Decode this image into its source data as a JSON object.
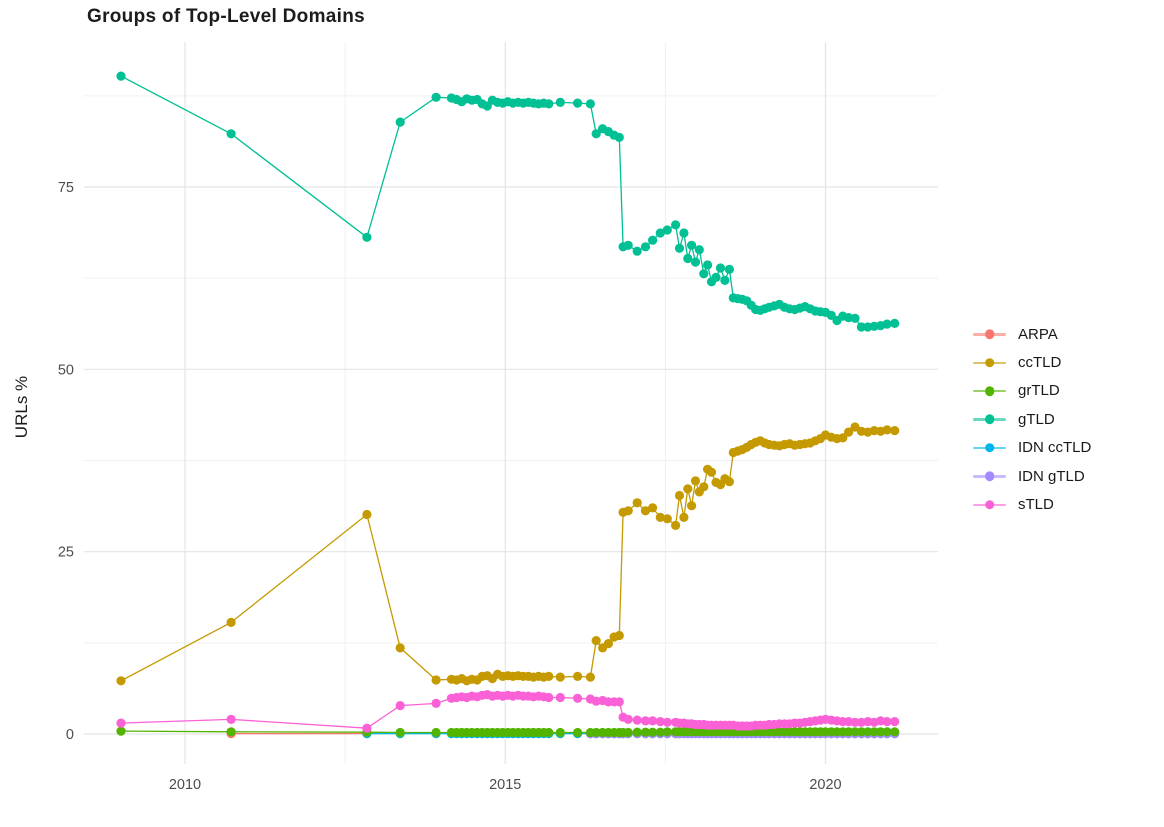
{
  "title": "Groups of Top-Level Domains",
  "y_axis": {
    "label": "URLs %",
    "ticks": [
      0,
      25,
      50,
      75
    ],
    "minor_ticks": [
      12.5,
      37.5,
      62.5,
      87.5
    ]
  },
  "x_axis": {
    "ticks": [
      2010,
      2015,
      2020
    ],
    "minor_ticks": [
      2012.5,
      2017.5
    ]
  },
  "colors": {
    "grid_major": "#e4e4e4",
    "grid_minor": "#f0f0f0",
    "axis_text": "#4d4d4d",
    "title_text": "#1c1c1c"
  },
  "chart_data": {
    "type": "line",
    "title": "Groups of Top-Level Domains",
    "xlabel": "",
    "ylabel": "URLs %",
    "ylim": [
      0,
      92
    ],
    "xlim": [
      2008.6,
      2021.8
    ],
    "grid": true,
    "legend_position": "right",
    "draw_order": [
      "ARPA",
      "IDN ccTLD",
      "IDN gTLD",
      "grTLD",
      "ccTLD",
      "gTLD",
      "sTLD"
    ],
    "x": [
      2009.0,
      2010.72,
      2012.84,
      2013.36,
      2013.92,
      2014.16,
      2014.24,
      2014.32,
      2014.4,
      2014.48,
      2014.56,
      2014.64,
      2014.72,
      2014.8,
      2014.88,
      2014.96,
      2015.04,
      2015.12,
      2015.2,
      2015.28,
      2015.36,
      2015.44,
      2015.52,
      2015.6,
      2015.68,
      2015.86,
      2016.13,
      2016.33,
      2016.42,
      2016.52,
      2016.61,
      2016.7,
      2016.78,
      2016.84,
      2016.92,
      2017.06,
      2017.19,
      2017.3,
      2017.42,
      2017.53,
      2017.66,
      2017.72,
      2017.79,
      2017.85,
      2017.91,
      2017.97,
      2018.03,
      2018.1,
      2018.16,
      2018.22,
      2018.29,
      2018.36,
      2018.43,
      2018.5,
      2018.56,
      2018.63,
      2018.7,
      2018.77,
      2018.84,
      2018.91,
      2018.98,
      2019.05,
      2019.12,
      2019.2,
      2019.28,
      2019.36,
      2019.44,
      2019.52,
      2019.6,
      2019.68,
      2019.76,
      2019.84,
      2019.92,
      2020.0,
      2020.09,
      2020.18,
      2020.27,
      2020.36,
      2020.46,
      2020.56,
      2020.66,
      2020.76,
      2020.86,
      2020.96,
      2021.08
    ],
    "series": [
      {
        "name": "ARPA",
        "color": "#F8766D",
        "values": [
          null,
          0.05,
          0.05,
          null,
          null,
          null,
          null,
          null,
          null,
          null,
          null,
          null,
          null,
          null,
          null,
          null,
          null,
          null,
          null,
          null,
          null,
          null,
          null,
          null,
          null,
          null,
          null,
          null,
          null,
          null,
          null,
          null,
          null,
          null,
          null,
          null,
          null,
          null,
          null,
          null,
          null,
          null,
          null,
          null,
          null,
          null,
          null,
          null,
          null,
          null,
          null,
          null,
          null,
          null,
          null,
          null,
          null,
          null,
          null,
          null,
          null,
          null,
          null,
          null,
          null,
          null,
          null,
          null,
          null,
          null,
          null,
          null,
          null,
          null,
          null,
          null,
          null,
          null,
          null,
          null,
          null,
          null,
          null,
          null,
          null
        ]
      },
      {
        "name": "ccTLD",
        "color": "#C49A00",
        "values": [
          7.3,
          15.3,
          30.1,
          11.8,
          7.4,
          7.5,
          7.4,
          7.6,
          7.3,
          7.5,
          7.4,
          7.9,
          8.0,
          7.6,
          8.2,
          7.9,
          8.0,
          7.9,
          8.0,
          7.9,
          7.9,
          7.8,
          7.9,
          7.8,
          7.9,
          7.8,
          7.9,
          7.8,
          12.8,
          11.8,
          12.4,
          13.3,
          13.5,
          30.4,
          30.6,
          31.7,
          30.6,
          31.0,
          29.7,
          29.5,
          28.6,
          32.7,
          29.7,
          33.6,
          31.3,
          34.7,
          33.2,
          33.9,
          36.3,
          35.9,
          34.5,
          34.2,
          35.0,
          34.6,
          38.6,
          38.8,
          39.0,
          39.3,
          39.7,
          40.0,
          40.2,
          39.9,
          39.7,
          39.6,
          39.5,
          39.7,
          39.8,
          39.6,
          39.7,
          39.8,
          39.9,
          40.2,
          40.5,
          41.0,
          40.7,
          40.5,
          40.6,
          41.4,
          42.1,
          41.5,
          41.4,
          41.6,
          41.5,
          41.7,
          41.6
        ]
      },
      {
        "name": "grTLD",
        "color": "#53B400",
        "values": [
          0.4,
          0.3,
          0.25,
          0.2,
          0.2,
          0.2,
          0.2,
          0.2,
          0.2,
          0.2,
          0.2,
          0.2,
          0.2,
          0.2,
          0.2,
          0.2,
          0.2,
          0.2,
          0.2,
          0.2,
          0.2,
          0.2,
          0.2,
          0.2,
          0.2,
          0.2,
          0.2,
          0.2,
          0.2,
          0.2,
          0.2,
          0.2,
          0.2,
          0.2,
          0.2,
          0.25,
          0.25,
          0.25,
          0.25,
          0.3,
          0.3,
          0.3,
          0.3,
          0.3,
          0.3,
          0.3,
          0.3,
          0.3,
          0.3,
          0.3,
          0.3,
          0.3,
          0.3,
          0.3,
          0.3,
          0.3,
          0.3,
          0.3,
          0.3,
          0.3,
          0.3,
          0.3,
          0.3,
          0.3,
          0.3,
          0.3,
          0.3,
          0.3,
          0.3,
          0.3,
          0.3,
          0.3,
          0.3,
          0.3,
          0.3,
          0.3,
          0.3,
          0.3,
          0.3,
          0.3,
          0.3,
          0.3,
          0.3,
          0.3,
          0.3
        ]
      },
      {
        "name": "gTLD",
        "color": "#00C094",
        "values": [
          90.2,
          82.3,
          68.1,
          83.9,
          87.3,
          87.2,
          87.0,
          86.7,
          87.1,
          86.9,
          87.0,
          86.4,
          86.1,
          86.9,
          86.6,
          86.5,
          86.7,
          86.5,
          86.6,
          86.5,
          86.6,
          86.5,
          86.4,
          86.5,
          86.4,
          86.6,
          86.5,
          86.4,
          82.3,
          83.0,
          82.6,
          82.1,
          81.8,
          66.8,
          67.0,
          66.2,
          66.8,
          67.7,
          68.7,
          69.1,
          69.8,
          66.6,
          68.7,
          65.2,
          67.0,
          64.7,
          66.4,
          63.1,
          64.3,
          62.0,
          62.6,
          63.9,
          62.2,
          63.7,
          59.8,
          59.7,
          59.6,
          59.4,
          58.8,
          58.2,
          58.1,
          58.3,
          58.5,
          58.7,
          58.9,
          58.5,
          58.3,
          58.2,
          58.4,
          58.6,
          58.3,
          58.0,
          57.9,
          57.8,
          57.4,
          56.7,
          57.3,
          57.1,
          57.0,
          55.8,
          55.8,
          55.9,
          56.0,
          56.2,
          56.3
        ]
      },
      {
        "name": "IDN ccTLD",
        "color": "#00B6EB",
        "values": [
          null,
          null,
          0.05,
          0.05,
          0.05,
          0.05,
          0.05,
          0.05,
          0.05,
          0.05,
          0.05,
          0.05,
          0.05,
          0.05,
          0.05,
          0.05,
          0.05,
          0.05,
          0.05,
          0.05,
          0.05,
          0.05,
          0.05,
          0.05,
          0.05,
          0.05,
          0.05,
          0.05,
          0.05,
          0.05,
          0.05,
          0.05,
          0.05,
          0.05,
          0.05,
          0.05,
          0.05,
          0.05,
          0.05,
          0.05,
          0.05,
          0.05,
          0.05,
          0.05,
          0.05,
          0.05,
          0.05,
          0.05,
          0.05,
          0.05,
          0.05,
          0.05,
          0.05,
          0.05,
          0.05,
          0.05,
          0.05,
          0.05,
          0.05,
          0.05,
          0.05,
          0.05,
          0.05,
          0.05,
          0.05,
          0.05,
          0.05,
          0.05,
          0.05,
          0.05,
          0.05,
          0.05,
          0.05,
          0.05,
          0.05,
          0.05,
          0.05,
          0.05,
          0.05,
          0.05,
          0.05,
          0.05,
          0.05,
          0.05,
          0.05
        ]
      },
      {
        "name": "IDN gTLD",
        "color": "#A58AFF",
        "values": [
          null,
          null,
          null,
          null,
          null,
          null,
          null,
          null,
          null,
          null,
          null,
          null,
          null,
          null,
          null,
          null,
          null,
          null,
          null,
          null,
          null,
          null,
          null,
          null,
          null,
          null,
          null,
          0.05,
          0.05,
          0.05,
          0.05,
          0.05,
          0.05,
          0.05,
          0.05,
          0.05,
          0.05,
          0.05,
          0.05,
          0.05,
          0.05,
          0.05,
          0.05,
          0.05,
          0.05,
          0.05,
          0.05,
          0.05,
          0.05,
          0.05,
          0.05,
          0.05,
          0.05,
          0.05,
          0.05,
          0.05,
          0.05,
          0.05,
          0.05,
          0.05,
          0.05,
          0.05,
          0.05,
          0.05,
          0.05,
          0.05,
          0.05,
          0.05,
          0.05,
          0.05,
          0.05,
          0.05,
          0.05,
          0.05,
          0.05,
          0.05,
          0.05,
          0.05,
          0.05,
          0.05,
          0.05,
          0.05,
          0.05,
          0.05,
          0.05
        ]
      },
      {
        "name": "sTLD",
        "color": "#FB61D7",
        "values": [
          1.5,
          2.0,
          0.8,
          3.9,
          4.2,
          4.9,
          5.0,
          5.1,
          5.0,
          5.2,
          5.1,
          5.3,
          5.4,
          5.2,
          5.3,
          5.2,
          5.3,
          5.2,
          5.3,
          5.2,
          5.2,
          5.1,
          5.2,
          5.1,
          5.0,
          5.0,
          4.9,
          4.8,
          4.5,
          4.6,
          4.4,
          4.4,
          4.4,
          2.3,
          2.0,
          1.9,
          1.8,
          1.8,
          1.7,
          1.6,
          1.6,
          1.5,
          1.5,
          1.4,
          1.4,
          1.3,
          1.3,
          1.3,
          1.2,
          1.2,
          1.2,
          1.2,
          1.2,
          1.2,
          1.2,
          1.1,
          1.1,
          1.1,
          1.1,
          1.2,
          1.2,
          1.2,
          1.3,
          1.3,
          1.4,
          1.4,
          1.4,
          1.5,
          1.5,
          1.6,
          1.7,
          1.8,
          1.9,
          2.0,
          1.9,
          1.8,
          1.7,
          1.7,
          1.6,
          1.6,
          1.7,
          1.6,
          1.8,
          1.7,
          1.7
        ]
      }
    ]
  }
}
